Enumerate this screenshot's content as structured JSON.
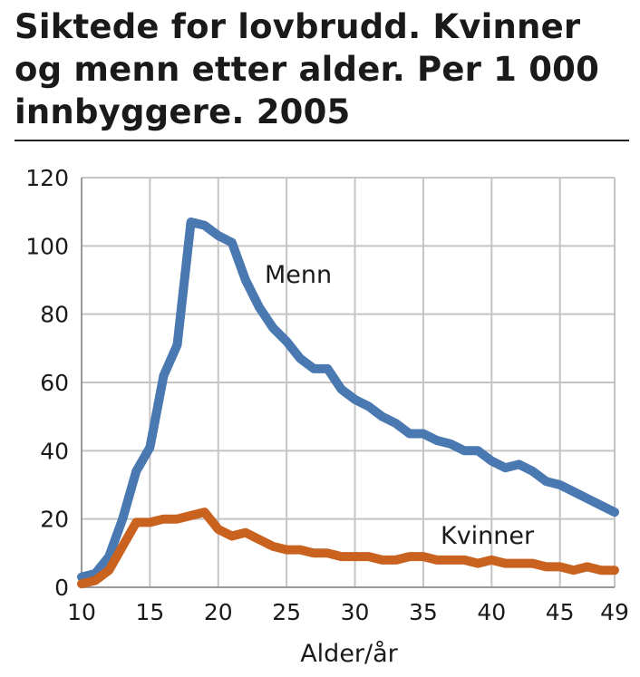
{
  "chart_data": {
    "type": "line",
    "title": "Siktede for lovbrudd. Kvinner og menn etter alder. Per 1 000 innbyggere. 2005",
    "xlabel": "Alder/år",
    "ylabel": "",
    "xlim": [
      10,
      49
    ],
    "ylim": [
      0,
      120
    ],
    "xticks": [
      10,
      15,
      20,
      25,
      30,
      35,
      40,
      45,
      49
    ],
    "yticks": [
      0,
      20,
      40,
      60,
      80,
      100,
      120
    ],
    "grid": true,
    "legend": "inline",
    "x": [
      10,
      11,
      12,
      13,
      14,
      15,
      16,
      17,
      18,
      19,
      20,
      21,
      22,
      23,
      24,
      25,
      26,
      27,
      28,
      29,
      30,
      31,
      32,
      33,
      34,
      35,
      36,
      37,
      38,
      39,
      40,
      41,
      42,
      43,
      44,
      45,
      46,
      47,
      48,
      49
    ],
    "series": [
      {
        "name": "Menn",
        "color": "#4a78b0",
        "values": [
          3,
          4,
          9,
          20,
          34,
          41,
          62,
          71,
          107,
          106,
          103,
          101,
          90,
          82,
          76,
          72,
          67,
          64,
          64,
          58,
          55,
          53,
          50,
          48,
          45,
          45,
          43,
          42,
          40,
          40,
          37,
          35,
          36,
          34,
          31,
          30,
          28,
          26,
          24,
          22
        ]
      },
      {
        "name": "Kvinner",
        "color": "#c8621e",
        "values": [
          1,
          2,
          5,
          12,
          19,
          19,
          20,
          20,
          21,
          22,
          17,
          15,
          16,
          14,
          12,
          11,
          11,
          10,
          10,
          9,
          9,
          9,
          8,
          8,
          9,
          9,
          8,
          8,
          8,
          7,
          8,
          7,
          7,
          7,
          6,
          6,
          5,
          6,
          5,
          5
        ]
      }
    ]
  }
}
